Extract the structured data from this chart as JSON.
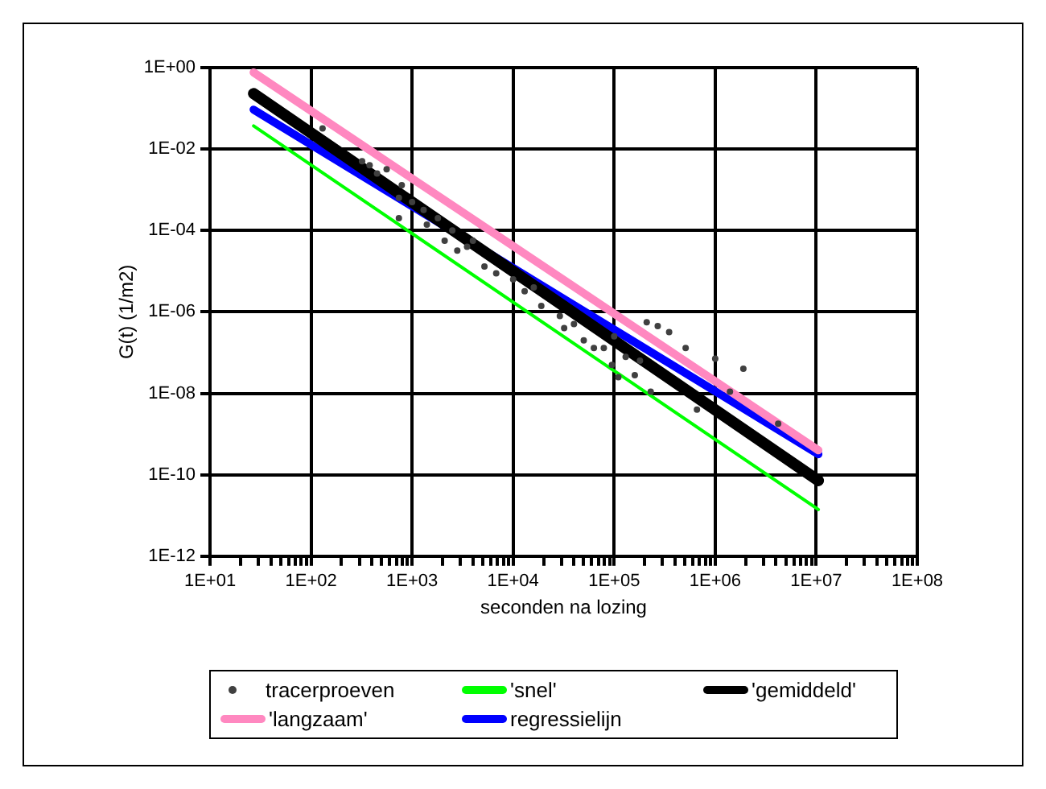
{
  "chart_data": {
    "type": "scatter",
    "xlabel": "seconden na lozing",
    "ylabel": "G(t) (1/m2)",
    "log": "xy",
    "grid": true,
    "legend": "bottom",
    "xlim": [
      10,
      100000000
    ],
    "ylim": [
      1e-12,
      1
    ],
    "xticks": [
      {
        "value": 10,
        "label": "1E+01"
      },
      {
        "value": 20,
        "label": null
      },
      {
        "value": 30,
        "label": null
      },
      {
        "value": 40,
        "label": null
      },
      {
        "value": 50,
        "label": null
      },
      {
        "value": 60,
        "label": null
      },
      {
        "value": 70,
        "label": null
      },
      {
        "value": 80,
        "label": null
      },
      {
        "value": 90,
        "label": null
      },
      {
        "value": 100,
        "label": "1E+02"
      },
      {
        "value": 200,
        "label": null
      },
      {
        "value": 300,
        "label": null
      },
      {
        "value": 400,
        "label": null
      },
      {
        "value": 500,
        "label": null
      },
      {
        "value": 600,
        "label": null
      },
      {
        "value": 700,
        "label": null
      },
      {
        "value": 800,
        "label": null
      },
      {
        "value": 900,
        "label": null
      },
      {
        "value": 1000,
        "label": "1E+03"
      },
      {
        "value": 2000,
        "label": null
      },
      {
        "value": 3000,
        "label": null
      },
      {
        "value": 4000,
        "label": null
      },
      {
        "value": 5000,
        "label": null
      },
      {
        "value": 6000,
        "label": null
      },
      {
        "value": 7000,
        "label": null
      },
      {
        "value": 8000,
        "label": null
      },
      {
        "value": 9000,
        "label": null
      },
      {
        "value": 10000,
        "label": "1E+04"
      },
      {
        "value": 20000,
        "label": null
      },
      {
        "value": 30000,
        "label": null
      },
      {
        "value": 40000,
        "label": null
      },
      {
        "value": 50000,
        "label": null
      },
      {
        "value": 60000,
        "label": null
      },
      {
        "value": 70000,
        "label": null
      },
      {
        "value": 80000,
        "label": null
      },
      {
        "value": 90000,
        "label": null
      },
      {
        "value": 100000,
        "label": "1E+05"
      },
      {
        "value": 200000,
        "label": null
      },
      {
        "value": 300000,
        "label": null
      },
      {
        "value": 400000,
        "label": null
      },
      {
        "value": 500000,
        "label": null
      },
      {
        "value": 600000,
        "label": null
      },
      {
        "value": 700000,
        "label": null
      },
      {
        "value": 800000,
        "label": null
      },
      {
        "value": 900000,
        "label": null
      },
      {
        "value": 1000000,
        "label": "1E+06"
      },
      {
        "value": 2000000,
        "label": null
      },
      {
        "value": 3000000,
        "label": null
      },
      {
        "value": 4000000,
        "label": null
      },
      {
        "value": 5000000,
        "label": null
      },
      {
        "value": 6000000,
        "label": null
      },
      {
        "value": 7000000,
        "label": null
      },
      {
        "value": 8000000,
        "label": null
      },
      {
        "value": 9000000,
        "label": null
      },
      {
        "value": 10000000,
        "label": "1E+07"
      },
      {
        "value": 20000000,
        "label": null
      },
      {
        "value": 30000000,
        "label": null
      },
      {
        "value": 40000000,
        "label": null
      },
      {
        "value": 50000000,
        "label": null
      },
      {
        "value": 60000000,
        "label": null
      },
      {
        "value": 70000000,
        "label": null
      },
      {
        "value": 80000000,
        "label": null
      },
      {
        "value": 90000000,
        "label": null
      },
      {
        "value": 100000000,
        "label": "1E+08"
      }
    ],
    "yticks": [
      {
        "value": 1e-12,
        "label": "1E-12"
      },
      {
        "value": 1e-10,
        "label": "1E-10"
      },
      {
        "value": 1e-08,
        "label": "1E-08"
      },
      {
        "value": 1e-06,
        "label": "1E-06"
      },
      {
        "value": 0.0001,
        "label": "1E-04"
      },
      {
        "value": 0.01,
        "label": "1E-02"
      },
      {
        "value": 1,
        "label": "1E+00"
      }
    ],
    "series": [
      {
        "name": "tracerproeven",
        "marker": "circle",
        "color": "#404040",
        "x": [
          130,
          380,
          560,
          740,
          740,
          1400,
          2100,
          4000,
          5200,
          2800,
          6800,
          19000,
          29000,
          63000,
          95000,
          210000,
          350000,
          510000,
          1000000,
          1900000,
          1400000,
          660000,
          230000,
          160000,
          270000,
          4200000,
          320,
          450,
          790,
          1000,
          1300,
          1800,
          2500,
          3500,
          10000,
          13000,
          16000,
          32000,
          40000,
          50000,
          79000,
          100000,
          130000,
          110000,
          180000
        ],
        "values": [
          0.032,
          0.004,
          0.0032,
          0.00063,
          0.0002,
          0.00014,
          5.6e-05,
          5.6e-05,
          1.3e-05,
          3.2e-05,
          8.9e-06,
          1.4e-06,
          7.9e-07,
          1.3e-07,
          5e-08,
          5.6e-07,
          3.2e-07,
          1.3e-07,
          7.1e-08,
          4e-08,
          1.1e-08,
          4e-09,
          1.1e-08,
          2.8e-08,
          4.5e-07,
          1.8e-09,
          0.005,
          0.0025,
          0.0013,
          0.0005,
          0.00032,
          0.0002,
          0.0001,
          4e-05,
          6.3e-06,
          3.2e-06,
          4e-06,
          4e-07,
          5e-07,
          2e-07,
          1.3e-07,
          2.5e-07,
          7.9e-08,
          2.5e-08,
          6.3e-08
        ]
      },
      {
        "name": "'snel'",
        "type": "line",
        "marker": "none",
        "color": "#00ff00",
        "x": [
          27,
          10500000
        ],
        "values": [
          0.037,
          1.4e-11
        ]
      },
      {
        "name": "'gemiddeld'",
        "type": "line",
        "marker": "none",
        "color": "#000000",
        "x": [
          27,
          10500000
        ],
        "values": [
          0.23,
          7.2e-11
        ]
      },
      {
        "name": "'langzaam'",
        "type": "line",
        "marker": "none",
        "color": "#ff88c0",
        "x": [
          27,
          10500000
        ],
        "values": [
          0.76,
          4e-10
        ]
      },
      {
        "name": "regressielijn",
        "type": "line",
        "marker": "none",
        "color": "#0000ff",
        "x": [
          27,
          10500000
        ],
        "values": [
          0.093,
          3.2e-10
        ]
      }
    ]
  }
}
